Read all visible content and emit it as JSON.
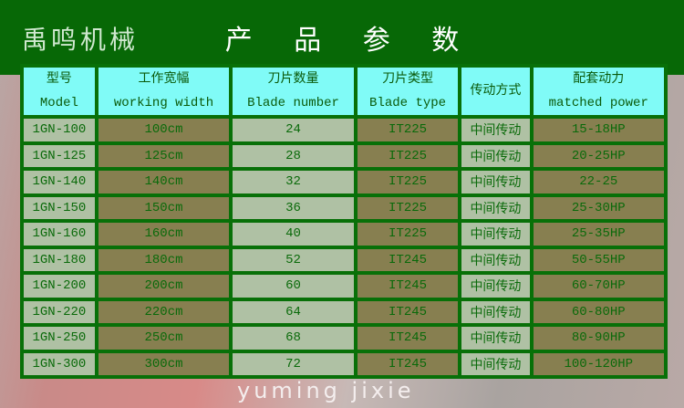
{
  "title": "产 品 参 数",
  "watermark": {
    "cn": "禹鸣机械",
    "en": "yuming jixie"
  },
  "table": {
    "headers": [
      {
        "cn": "型号",
        "en": "Model"
      },
      {
        "cn": "工作宽幅",
        "en": "working width"
      },
      {
        "cn": "刀片数量",
        "en": "Blade number"
      },
      {
        "cn": "刀片类型",
        "en": "Blade type"
      },
      {
        "cn": "传动方式",
        "en": ""
      },
      {
        "cn": "配套动力",
        "en": "matched power"
      }
    ],
    "rows": [
      [
        "1GN-100",
        "100cm",
        "24",
        "IT225",
        "中间传动",
        "15-18HP"
      ],
      [
        "1GN-125",
        "125cm",
        "28",
        "IT225",
        "中间传动",
        "20-25HP"
      ],
      [
        "1GN-140",
        "140cm",
        "32",
        "IT225",
        "中间传动",
        "22-25"
      ],
      [
        "1GN-150",
        "150cm",
        "36",
        "IT225",
        "中间传动",
        "25-30HP"
      ],
      [
        "1GN-160",
        "160cm",
        "40",
        "IT225",
        "中间传动",
        "25-35HP"
      ],
      [
        "1GN-180",
        "180cm",
        "52",
        "IT245",
        "中间传动",
        "50-55HP"
      ],
      [
        "1GN-200",
        "200cm",
        "60",
        "IT245",
        "中间传动",
        "60-70HP"
      ],
      [
        "1GN-220",
        "220cm",
        "64",
        "IT245",
        "中间传动",
        "60-80HP"
      ],
      [
        "1GN-250",
        "250cm",
        "68",
        "IT245",
        "中间传动",
        "80-90HP"
      ],
      [
        "1GN-300",
        "300cm",
        "72",
        "IT245",
        "中间传动",
        "100-120HP"
      ]
    ]
  }
}
